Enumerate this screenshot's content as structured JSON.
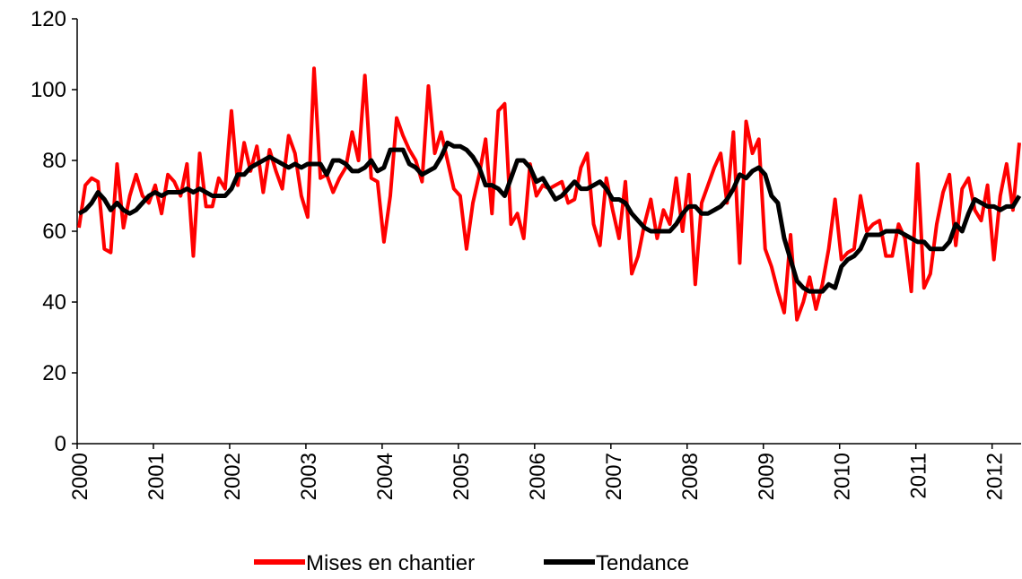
{
  "chart_data": {
    "type": "line",
    "categories": [
      "2000",
      null,
      null,
      null,
      null,
      null,
      null,
      null,
      null,
      null,
      null,
      null,
      "2001",
      null,
      null,
      null,
      null,
      null,
      null,
      null,
      null,
      null,
      null,
      null,
      "2002",
      null,
      null,
      null,
      null,
      null,
      null,
      null,
      null,
      null,
      null,
      null,
      "2003",
      null,
      null,
      null,
      null,
      null,
      null,
      null,
      null,
      null,
      null,
      null,
      "2004",
      null,
      null,
      null,
      null,
      null,
      null,
      null,
      null,
      null,
      null,
      null,
      "2005",
      null,
      null,
      null,
      null,
      null,
      null,
      null,
      null,
      null,
      null,
      null,
      "2006",
      null,
      null,
      null,
      null,
      null,
      null,
      null,
      null,
      null,
      null,
      null,
      "2007",
      null,
      null,
      null,
      null,
      null,
      null,
      null,
      null,
      null,
      null,
      null,
      "2008",
      null,
      null,
      null,
      null,
      null,
      null,
      null,
      null,
      null,
      null,
      null,
      "2009",
      null,
      null,
      null,
      null,
      null,
      null,
      null,
      null,
      null,
      null,
      null,
      "2010",
      null,
      null,
      null,
      null,
      null,
      null,
      null,
      null,
      null,
      null,
      null,
      "2011",
      null,
      null,
      null,
      null,
      null,
      null,
      null,
      null,
      null,
      null,
      null,
      "2012",
      null,
      null,
      null,
      null
    ],
    "series": [
      {
        "name": "Mises en chantier",
        "color": "#ff0000",
        "values": [
          61,
          73,
          75,
          74,
          55,
          54,
          79,
          61,
          70,
          76,
          70,
          68,
          73,
          65,
          76,
          74,
          70,
          79,
          53,
          82,
          67,
          67,
          75,
          72,
          94,
          73,
          85,
          77,
          84,
          71,
          83,
          77,
          72,
          87,
          82,
          70,
          64,
          106,
          75,
          76,
          71,
          75,
          78,
          88,
          80,
          104,
          75,
          74,
          57,
          70,
          92,
          87,
          83,
          80,
          74,
          101,
          82,
          88,
          80,
          72,
          70,
          55,
          68,
          76,
          86,
          65,
          94,
          96,
          62,
          65,
          58,
          79,
          70,
          73,
          72,
          73,
          74,
          68,
          69,
          78,
          82,
          62,
          56,
          75,
          66,
          58,
          74,
          48,
          53,
          62,
          69,
          58,
          66,
          62,
          75,
          60,
          76,
          45,
          68,
          73,
          78,
          82,
          68,
          88,
          51,
          91,
          82,
          86,
          55,
          50,
          43,
          37,
          59,
          35,
          40,
          47,
          38,
          45,
          55,
          69,
          52,
          54,
          55,
          70,
          60,
          62,
          63,
          53,
          53,
          62,
          58,
          43,
          79,
          44,
          48,
          62,
          71,
          76,
          56,
          72,
          75,
          66,
          63,
          73,
          52,
          70,
          79,
          66,
          85
        ]
      },
      {
        "name": "Tendance",
        "color": "#000000",
        "values": [
          65,
          66,
          68,
          71,
          69,
          66,
          68,
          66,
          65,
          66,
          68,
          70,
          71,
          70,
          71,
          71,
          71,
          72,
          71,
          72,
          71,
          70,
          70,
          70,
          72,
          76,
          76,
          78,
          79,
          80,
          81,
          80,
          79,
          78,
          79,
          78,
          79,
          79,
          79,
          76,
          80,
          80,
          79,
          77,
          77,
          78,
          80,
          77,
          78,
          83,
          83,
          83,
          79,
          78,
          76,
          77,
          78,
          81,
          85,
          84,
          84,
          83,
          81,
          78,
          73,
          73,
          72,
          70,
          75,
          80,
          80,
          78,
          74,
          75,
          72,
          69,
          70,
          72,
          74,
          72,
          72,
          73,
          74,
          72,
          69,
          69,
          68,
          65,
          63,
          61,
          60,
          60,
          60,
          60,
          62,
          65,
          67,
          67,
          65,
          65,
          66,
          67,
          69,
          72,
          76,
          75,
          77,
          78,
          76,
          70,
          68,
          58,
          52,
          46,
          44,
          43,
          43,
          43,
          45,
          44,
          50,
          52,
          53,
          55,
          59,
          59,
          59,
          60,
          60,
          60,
          59,
          58,
          57,
          57,
          55,
          55,
          55,
          57,
          62,
          60,
          65,
          69,
          68,
          67,
          67,
          66,
          67,
          67,
          70
        ]
      }
    ],
    "ylim": [
      0,
      120
    ],
    "yticks": [
      0,
      20,
      40,
      60,
      80,
      100,
      120
    ],
    "legend": "bottom"
  }
}
